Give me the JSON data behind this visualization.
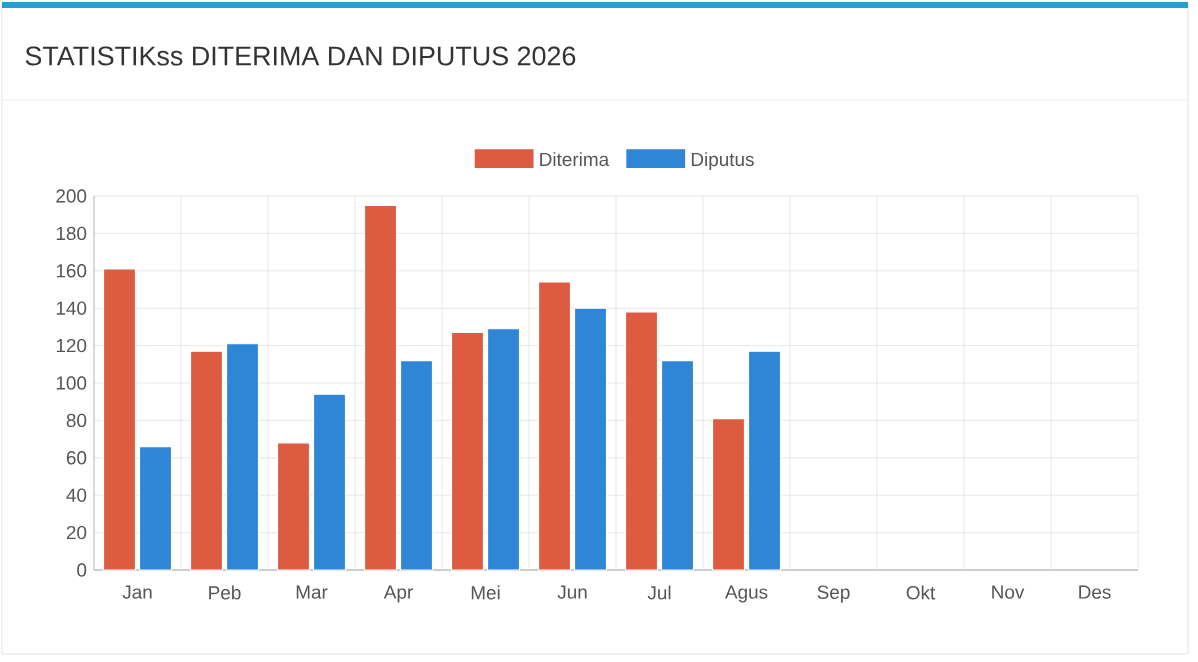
{
  "chart_data": {
    "type": "bar",
    "title": "STATISTIKss DITERIMA DAN DIPUTUS 2026",
    "categories": [
      "Jan",
      "Peb",
      "Mar",
      "Apr",
      "Mei",
      "Jun",
      "Jul",
      "Agus",
      "Sep",
      "Okt",
      "Nov",
      "Des"
    ],
    "series": [
      {
        "name": "Diterima",
        "color": "#dd5b40",
        "values": [
          161,
          117,
          68,
          195,
          127,
          154,
          138,
          81,
          null,
          null,
          null,
          null
        ]
      },
      {
        "name": "Diputus",
        "color": "#2f86d6",
        "values": [
          66,
          121,
          94,
          112,
          129,
          140,
          112,
          117,
          null,
          null,
          null,
          null
        ]
      }
    ],
    "ylim": [
      0,
      200
    ],
    "yticks": [
      0,
      20,
      40,
      60,
      80,
      100,
      120,
      140,
      160,
      180,
      200
    ],
    "grid": true,
    "legend": "top"
  }
}
